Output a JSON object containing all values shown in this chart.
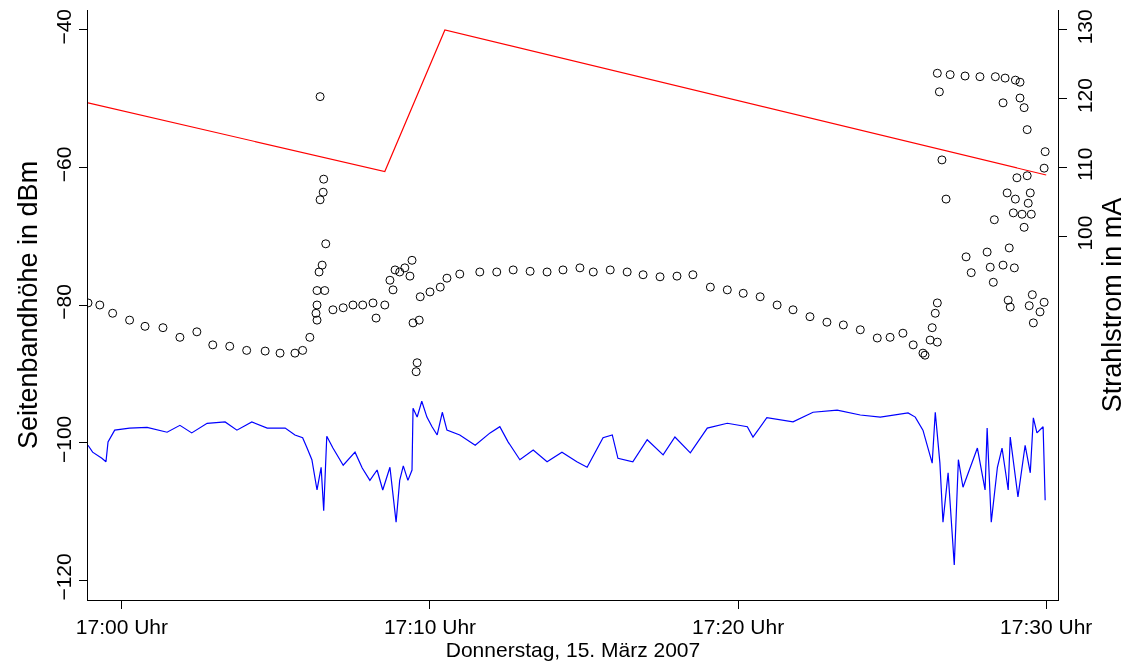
{
  "chart_data": {
    "type": "scatter",
    "xlabel": "Donnerstag, 15. März 2007",
    "ylabel": "Seitenbandhöhe in dBm",
    "y2label": "Strahlstrom in mA",
    "xlim": [
      "2007-03-15T16:58:54",
      "2007-03-15T17:30:23"
    ],
    "xticks": [
      {
        "value": "2007-03-15T17:00",
        "label": "17:00 Uhr"
      },
      {
        "value": "2007-03-15T17:10",
        "label": "17:10 Uhr"
      },
      {
        "value": "2007-03-15T17:20",
        "label": "17:20 Uhr"
      },
      {
        "value": "2007-03-15T17:30",
        "label": "17:30 Uhr"
      }
    ],
    "ylim": [
      -122.9,
      -37.1
    ],
    "yticks": [
      -120,
      -100,
      -80,
      -60,
      -40
    ],
    "y2lim": [
      47.1,
      132.9
    ],
    "y2ticks": [
      100,
      110,
      120,
      130
    ],
    "grid": false,
    "series": [
      {
        "marker": "circle",
        "color": "#000000",
        "x": [
          "2007-03-15T16:58:54",
          "2007-03-15T16:59:17",
          "2007-03-15T16:59:42",
          "2007-03-15T17:00:15",
          "2007-03-15T17:00:45",
          "2007-03-15T17:01:20",
          "2007-03-15T17:01:53",
          "2007-03-15T17:02:26",
          "2007-03-15T17:02:57",
          "2007-03-15T17:03:30",
          "2007-03-15T17:04:03",
          "2007-03-15T17:04:39",
          "2007-03-15T17:05:08",
          "2007-03-15T17:05:37",
          "2007-03-15T17:05:52",
          "2007-03-15T17:06:06",
          "2007-03-15T17:06:18",
          "2007-03-15T17:06:20",
          "2007-03-15T17:06:20",
          "2007-03-15T17:06:20",
          "2007-03-15T17:06:24",
          "2007-03-15T17:06:26",
          "2007-03-15T17:06:26",
          "2007-03-15T17:06:30",
          "2007-03-15T17:06:32",
          "2007-03-15T17:06:33",
          "2007-03-15T17:06:35",
          "2007-03-15T17:06:37",
          "2007-03-15T17:06:51",
          "2007-03-15T17:07:11",
          "2007-03-15T17:07:30",
          "2007-03-15T17:07:49",
          "2007-03-15T17:08:09",
          "2007-03-15T17:08:15",
          "2007-03-15T17:08:32",
          "2007-03-15T17:08:42",
          "2007-03-15T17:08:48",
          "2007-03-15T17:08:52",
          "2007-03-15T17:09:01",
          "2007-03-15T17:09:11",
          "2007-03-15T17:09:21",
          "2007-03-15T17:09:25",
          "2007-03-15T17:09:27",
          "2007-03-15T17:09:33",
          "2007-03-15T17:09:35",
          "2007-03-15T17:09:39",
          "2007-03-15T17:09:41",
          "2007-03-15T17:10:00",
          "2007-03-15T17:10:20",
          "2007-03-15T17:10:33",
          "2007-03-15T17:10:58",
          "2007-03-15T17:11:37",
          "2007-03-15T17:12:10",
          "2007-03-15T17:12:42",
          "2007-03-15T17:13:15",
          "2007-03-15T17:13:48",
          "2007-03-15T17:14:19",
          "2007-03-15T17:14:52",
          "2007-03-15T17:15:18",
          "2007-03-15T17:15:51",
          "2007-03-15T17:16:24",
          "2007-03-15T17:16:55",
          "2007-03-15T17:17:28",
          "2007-03-15T17:18:01",
          "2007-03-15T17:18:32",
          "2007-03-15T17:19:06",
          "2007-03-15T17:19:39",
          "2007-03-15T17:20:10",
          "2007-03-15T17:20:43",
          "2007-03-15T17:21:16",
          "2007-03-15T17:21:47",
          "2007-03-15T17:22:20",
          "2007-03-15T17:22:53",
          "2007-03-15T17:23:25",
          "2007-03-15T17:23:58",
          "2007-03-15T17:24:31",
          "2007-03-15T17:24:56",
          "2007-03-15T17:25:21",
          "2007-03-15T17:25:41",
          "2007-03-15T17:26:00",
          "2007-03-15T17:26:04",
          "2007-03-15T17:26:14",
          "2007-03-15T17:26:18",
          "2007-03-15T17:26:24",
          "2007-03-15T17:26:28",
          "2007-03-15T17:26:28",
          "2007-03-15T17:26:28",
          "2007-03-15T17:26:32",
          "2007-03-15T17:26:37",
          "2007-03-15T17:26:45",
          "2007-03-15T17:26:53",
          "2007-03-15T17:27:22",
          "2007-03-15T17:27:24",
          "2007-03-15T17:27:34",
          "2007-03-15T17:27:51",
          "2007-03-15T17:28:05",
          "2007-03-15T17:28:11",
          "2007-03-15T17:28:17",
          "2007-03-15T17:28:19",
          "2007-03-15T17:28:21",
          "2007-03-15T17:28:36",
          "2007-03-15T17:28:36",
          "2007-03-15T17:28:40",
          "2007-03-15T17:28:44",
          "2007-03-15T17:28:46",
          "2007-03-15T17:28:48",
          "2007-03-15T17:28:50",
          "2007-03-15T17:28:56",
          "2007-03-15T17:28:58",
          "2007-03-15T17:29:00",
          "2007-03-15T17:29:00",
          "2007-03-15T17:29:03",
          "2007-03-15T17:29:09",
          "2007-03-15T17:29:09",
          "2007-03-15T17:29:13",
          "2007-03-15T17:29:17",
          "2007-03-15T17:29:17",
          "2007-03-15T17:29:23",
          "2007-03-15T17:29:23",
          "2007-03-15T17:29:25",
          "2007-03-15T17:29:27",
          "2007-03-15T17:29:29",
          "2007-03-15T17:29:31",
          "2007-03-15T17:29:33",
          "2007-03-15T17:29:35",
          "2007-03-15T17:29:48",
          "2007-03-15T17:29:56",
          "2007-03-15T17:29:56",
          "2007-03-15T17:29:58"
        ],
        "values": [
          -79.7,
          -80.0,
          -81.2,
          -82.2,
          -83.1,
          -83.3,
          -84.7,
          -83.9,
          -85.8,
          -86.0,
          -86.6,
          -86.7,
          -87.0,
          -87.0,
          -86.6,
          -84.7,
          -81.2,
          -80.0,
          -77.9,
          -82.2,
          -75.2,
          -64.7,
          -49.7,
          -74.2,
          -63.6,
          -61.7,
          -77.9,
          -71.1,
          -80.7,
          -80.4,
          -80.0,
          -80.0,
          -79.7,
          -81.9,
          -80.0,
          -76.4,
          -77.8,
          -74.9,
          -75.2,
          -74.6,
          -75.8,
          -73.5,
          -82.6,
          -89.7,
          -88.4,
          -82.2,
          -78.8,
          -78.1,
          -77.4,
          -76.1,
          -75.5,
          -75.2,
          -75.2,
          -74.9,
          -75.1,
          -75.2,
          -74.9,
          -74.6,
          -75.2,
          -74.9,
          -75.2,
          -75.6,
          -75.9,
          -75.8,
          -75.6,
          -77.4,
          -77.8,
          -78.3,
          -78.8,
          -80.0,
          -80.7,
          -81.7,
          -82.5,
          -82.9,
          -83.6,
          -84.8,
          -84.7,
          -84.1,
          -85.8,
          -87.0,
          -87.3,
          -85.1,
          -83.3,
          -81.2,
          -79.7,
          -85.4,
          -46.3,
          -49.0,
          -58.9,
          -64.6,
          -46.5,
          -46.7,
          -73.0,
          -75.3,
          -46.8,
          -72.3,
          -74.5,
          -76.7,
          -67.6,
          -46.8,
          -50.6,
          -74.2,
          -47.0,
          -63.7,
          -79.3,
          -71.7,
          -80.3,
          -66.6,
          -74.6,
          -64.6,
          -47.3,
          -61.5,
          -49.9,
          -47.6,
          -66.8,
          -51.3,
          -68.7,
          -54.5,
          -61.2,
          -65.2,
          -80.1,
          -63.7,
          -66.8,
          -78.5,
          -82.6,
          -81.0,
          -60.1,
          -79.6,
          -57.7
        ]
      },
      {
        "type": "line",
        "line_style": "solid",
        "color": "#0000ff",
        "x": [
          "2007-03-15T16:58:54",
          "2007-03-15T16:59:03",
          "2007-03-15T16:59:21",
          "2007-03-15T16:59:29",
          "2007-03-15T16:59:33",
          "2007-03-15T16:59:46",
          "2007-03-15T17:00:15",
          "2007-03-15T17:00:49",
          "2007-03-15T17:01:28",
          "2007-03-15T17:01:53",
          "2007-03-15T17:02:16",
          "2007-03-15T17:02:46",
          "2007-03-15T17:03:21",
          "2007-03-15T17:03:44",
          "2007-03-15T17:04:13",
          "2007-03-15T17:04:43",
          "2007-03-15T17:05:18",
          "2007-03-15T17:05:37",
          "2007-03-15T17:05:52",
          "2007-03-15T17:06:00",
          "2007-03-15T17:06:10",
          "2007-03-15T17:06:20",
          "2007-03-15T17:06:28",
          "2007-03-15T17:06:33",
          "2007-03-15T17:06:39",
          "2007-03-15T17:06:51",
          "2007-03-15T17:07:11",
          "2007-03-15T17:07:34",
          "2007-03-15T17:07:48",
          "2007-03-15T17:08:03",
          "2007-03-15T17:08:17",
          "2007-03-15T17:08:28",
          "2007-03-15T17:08:42",
          "2007-03-15T17:08:54",
          "2007-03-15T17:09:01",
          "2007-03-15T17:09:08",
          "2007-03-15T17:09:17",
          "2007-03-15T17:09:25",
          "2007-03-15T17:09:27",
          "2007-03-15T17:09:35",
          "2007-03-15T17:09:44",
          "2007-03-15T17:09:54",
          "2007-03-15T17:10:04",
          "2007-03-15T17:10:14",
          "2007-03-15T17:10:24",
          "2007-03-15T17:10:33",
          "2007-03-15T17:10:58",
          "2007-03-15T17:11:28",
          "2007-03-15T17:11:57",
          "2007-03-15T17:12:16",
          "2007-03-15T17:12:32",
          "2007-03-15T17:12:55",
          "2007-03-15T17:13:21",
          "2007-03-15T17:13:48",
          "2007-03-15T17:14:17",
          "2007-03-15T17:14:46",
          "2007-03-15T17:15:06",
          "2007-03-15T17:15:37",
          "2007-03-15T17:15:55",
          "2007-03-15T17:16:06",
          "2007-03-15T17:16:35",
          "2007-03-15T17:17:03",
          "2007-03-15T17:17:34",
          "2007-03-15T17:17:57",
          "2007-03-15T17:18:27",
          "2007-03-15T17:19:00",
          "2007-03-15T17:19:39",
          "2007-03-15T17:20:18",
          "2007-03-15T17:20:29",
          "2007-03-15T17:20:56",
          "2007-03-15T17:21:47",
          "2007-03-15T17:22:26",
          "2007-03-15T17:23:13",
          "2007-03-15T17:23:58",
          "2007-03-15T17:24:37",
          "2007-03-15T17:25:31",
          "2007-03-15T17:25:45",
          "2007-03-15T17:26:00",
          "2007-03-15T17:26:18",
          "2007-03-15T17:26:24",
          "2007-03-15T17:26:33",
          "2007-03-15T17:26:39",
          "2007-03-15T17:26:49",
          "2007-03-15T17:27:01",
          "2007-03-15T17:27:09",
          "2007-03-15T17:27:18",
          "2007-03-15T17:27:46",
          "2007-03-15T17:28:01",
          "2007-03-15T17:28:05",
          "2007-03-15T17:28:13",
          "2007-03-15T17:28:25",
          "2007-03-15T17:28:34",
          "2007-03-15T17:28:46",
          "2007-03-15T17:28:50",
          "2007-03-15T17:29:05",
          "2007-03-15T17:29:19",
          "2007-03-15T17:29:29",
          "2007-03-15T17:29:35",
          "2007-03-15T17:29:42",
          "2007-03-15T17:29:54",
          "2007-03-15T17:29:58"
        ],
        "values": [
          -100.4,
          -101.4,
          -102.3,
          -102.8,
          -99.9,
          -98.2,
          -97.9,
          -97.8,
          -98.5,
          -97.5,
          -98.6,
          -97.2,
          -97.0,
          -98.2,
          -97.0,
          -97.9,
          -97.9,
          -98.9,
          -99.3,
          -100.7,
          -102.5,
          -106.9,
          -103.6,
          -109.9,
          -99.1,
          -100.8,
          -103.3,
          -101.4,
          -103.7,
          -105.5,
          -104.0,
          -106.9,
          -103.6,
          -111.6,
          -105.5,
          -103.4,
          -105.5,
          -104.0,
          -95.0,
          -96.3,
          -94.0,
          -96.3,
          -97.7,
          -98.9,
          -95.6,
          -98.2,
          -98.9,
          -100.4,
          -98.6,
          -97.7,
          -99.9,
          -102.5,
          -101.1,
          -102.8,
          -101.4,
          -102.8,
          -103.6,
          -99.3,
          -98.9,
          -102.3,
          -102.8,
          -99.6,
          -101.8,
          -99.2,
          -101.5,
          -97.9,
          -97.2,
          -97.7,
          -99.2,
          -96.4,
          -97.0,
          -95.6,
          -95.3,
          -96.0,
          -96.3,
          -95.7,
          -96.3,
          -98.2,
          -103.0,
          -95.6,
          -103.0,
          -111.6,
          -104.4,
          -117.8,
          -102.5,
          -106.5,
          -100.8,
          -106.9,
          -97.9,
          -111.6,
          -103.6,
          -100.8,
          -106.9,
          -99.2,
          -107.9,
          -100.4,
          -104.4,
          -96.4,
          -98.6,
          -97.7,
          -108.4
        ]
      },
      {
        "type": "line",
        "line_style": "solid",
        "axis": "y2",
        "color": "#ff0000",
        "x": [
          "2007-03-15T16:58:54",
          "2007-03-15T17:08:32",
          "2007-03-15T17:10:29",
          "2007-03-15T17:30:00"
        ],
        "values": [
          119.4,
          109.4,
          130,
          108.9
        ]
      }
    ]
  }
}
